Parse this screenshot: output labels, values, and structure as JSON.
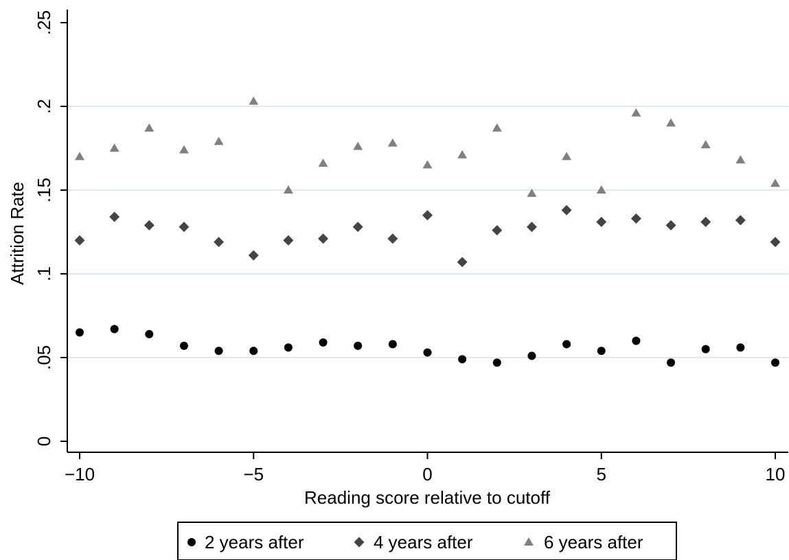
{
  "chart_data": {
    "type": "scatter",
    "title": "",
    "xlabel": "Reading score relative to cutoff",
    "ylabel": "Attrition Rate",
    "xlim": [
      -10,
      10
    ],
    "ylim": [
      0,
      0.25
    ],
    "x_ticks": [
      -10,
      -5,
      0,
      5,
      10
    ],
    "x_tick_labels": [
      "−10",
      "−5",
      "0",
      "5",
      "10"
    ],
    "y_ticks": [
      0,
      0.05,
      0.1,
      0.15,
      0.2,
      0.25
    ],
    "y_tick_labels": [
      "0",
      ".05",
      ".1",
      ".15",
      ".2",
      ".25"
    ],
    "grid": "horizontal",
    "legend_position": "bottom",
    "x": [
      -10,
      -9,
      -8,
      -7,
      -6,
      -5,
      -4,
      -3,
      -2,
      -1,
      0,
      1,
      2,
      3,
      4,
      5,
      6,
      7,
      8,
      9,
      10
    ],
    "series": [
      {
        "name": "2 years after",
        "marker": "circle",
        "color": "#000000",
        "values": [
          0.065,
          0.067,
          0.064,
          0.057,
          0.054,
          0.054,
          0.056,
          0.059,
          0.057,
          0.058,
          0.053,
          0.049,
          0.047,
          0.051,
          0.058,
          0.054,
          0.06,
          0.047,
          0.055,
          0.056,
          0.047
        ]
      },
      {
        "name": "4 years after",
        "marker": "diamond",
        "color": "#444444",
        "values": [
          0.12,
          0.134,
          0.129,
          0.128,
          0.119,
          0.111,
          0.12,
          0.121,
          0.128,
          0.121,
          0.135,
          0.107,
          0.126,
          0.128,
          0.138,
          0.131,
          0.133,
          0.129,
          0.131,
          0.132,
          0.119
        ]
      },
      {
        "name": "6 years after",
        "marker": "triangle",
        "color": "#808080",
        "values": [
          0.17,
          0.175,
          0.187,
          0.174,
          0.179,
          0.203,
          0.15,
          0.166,
          0.176,
          0.178,
          0.165,
          0.171,
          0.187,
          0.148,
          0.17,
          0.15,
          0.196,
          0.19,
          0.177,
          0.168,
          0.154
        ]
      }
    ],
    "colors": {
      "gridline": "#dfe9ec",
      "axis": "#000000"
    }
  }
}
